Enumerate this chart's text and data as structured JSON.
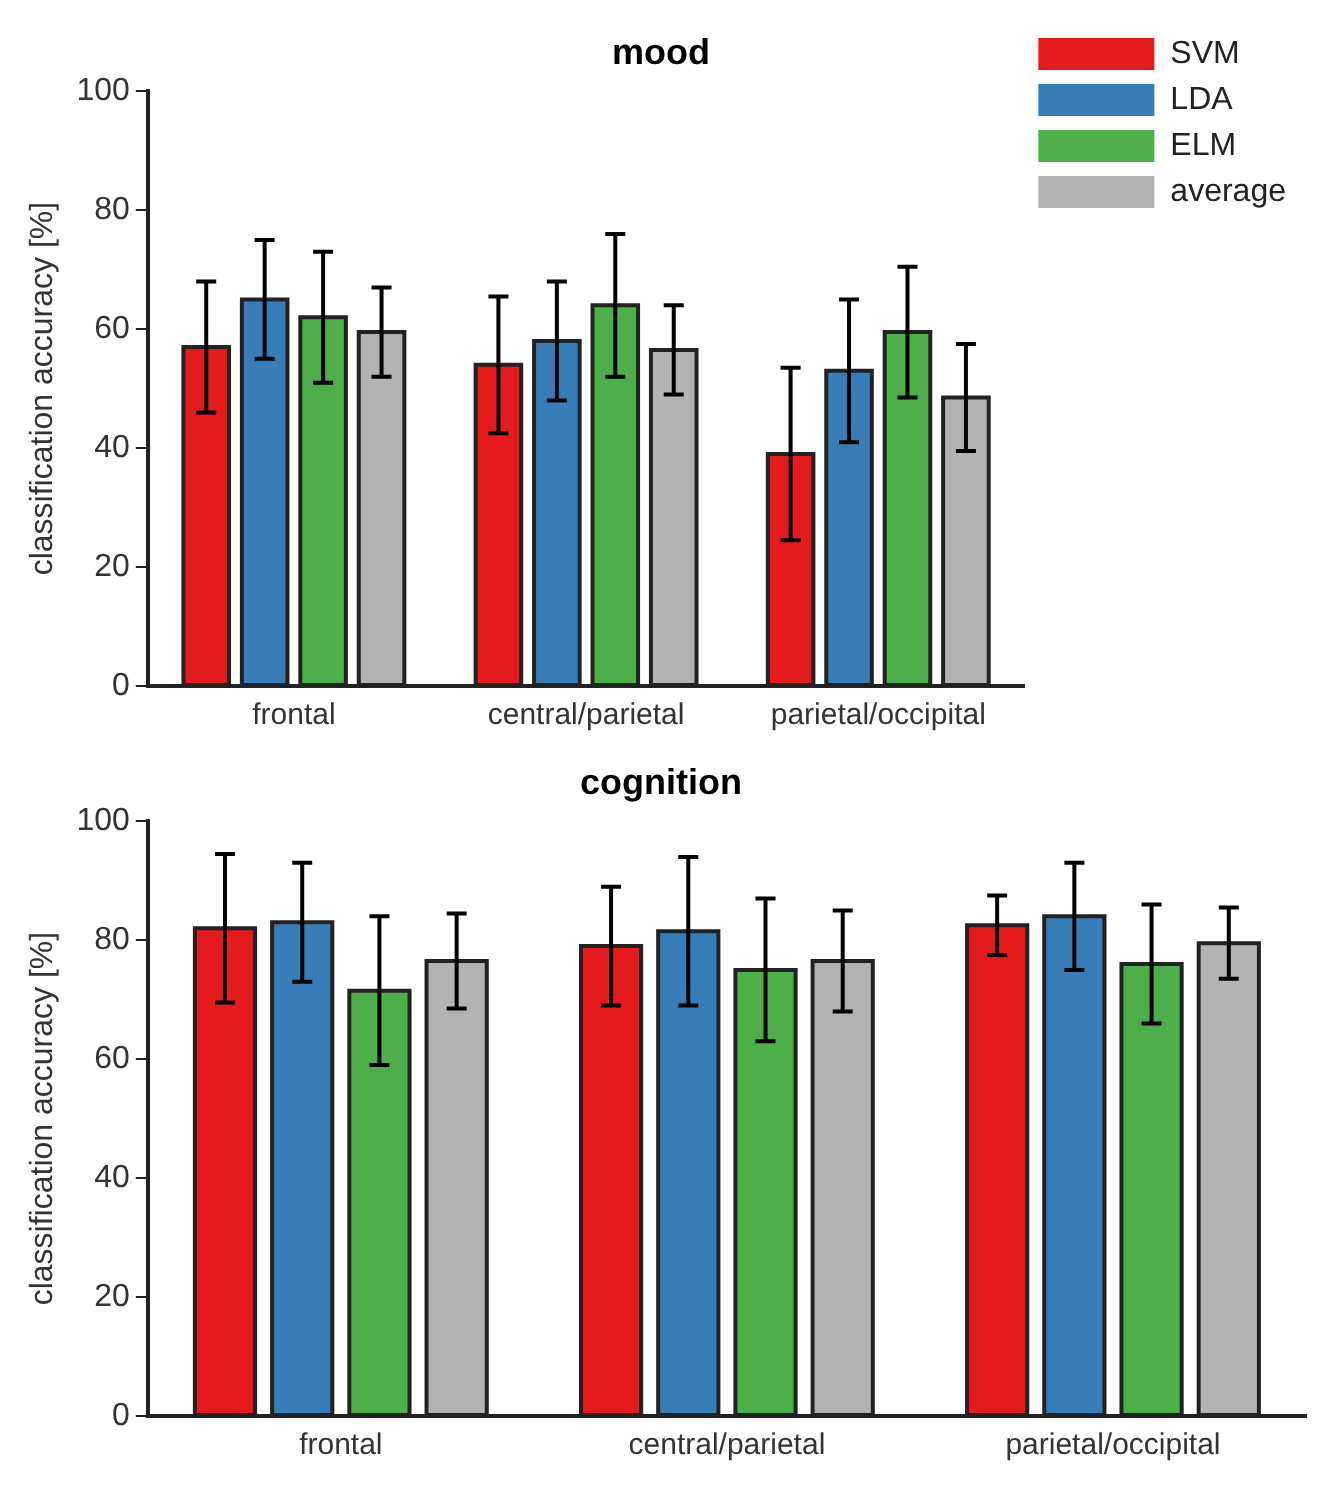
{
  "chart_data": [
    {
      "type": "bar",
      "title": "mood",
      "ylabel": "classification accuracy [%]",
      "categories": [
        "frontal",
        "central/parietal",
        "parietal/occipital"
      ],
      "series": [
        {
          "name": "SVM",
          "color": "#e41a1c",
          "values": [
            57,
            54,
            39
          ],
          "errors": [
            11,
            11.5,
            14.5
          ]
        },
        {
          "name": "LDA",
          "color": "#377eb8",
          "values": [
            65,
            58,
            53
          ],
          "errors": [
            10,
            10,
            12
          ]
        },
        {
          "name": "ELM",
          "color": "#4daf4a",
          "values": [
            62,
            64,
            59.5
          ],
          "errors": [
            11,
            12,
            11
          ]
        },
        {
          "name": "average",
          "color": "#b3b3b3",
          "values": [
            59.5,
            56.5,
            48.5
          ],
          "errors": [
            7.5,
            7.5,
            9
          ]
        }
      ],
      "ylim": [
        0,
        100
      ],
      "yticks": [
        0,
        20,
        40,
        60,
        80,
        100
      ],
      "grid": false,
      "legend": "top right"
    },
    {
      "type": "bar",
      "title": "cognition",
      "ylabel": "classification accuracy [%]",
      "categories": [
        "frontal",
        "central/parietal",
        "parietal/occipital"
      ],
      "series": [
        {
          "color": "#e41a1c",
          "values": [
            82,
            79,
            82.5
          ],
          "errors": [
            12.5,
            10,
            5
          ]
        },
        {
          "color": "#377eb8",
          "values": [
            83,
            81.5,
            84
          ],
          "errors": [
            10,
            12.5,
            9
          ]
        },
        {
          "color": "#4daf4a",
          "values": [
            71.5,
            75,
            76
          ],
          "errors": [
            12.5,
            12,
            10
          ]
        },
        {
          "color": "#b3b3b3",
          "values": [
            76.5,
            76.5,
            79.5
          ],
          "errors": [
            8,
            8.5,
            6
          ]
        }
      ],
      "ylim": [
        0,
        100
      ],
      "yticks": [
        0,
        20,
        40,
        60,
        80,
        100
      ],
      "grid": false
    }
  ]
}
